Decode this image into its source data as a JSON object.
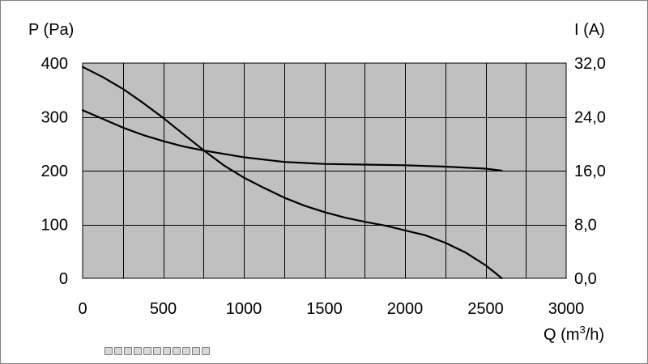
{
  "chart_data": {
    "type": "line",
    "title": "",
    "xlabel_prefix": "Q (m",
    "xlabel_sup": "3",
    "xlabel_suffix": "/h)",
    "ylabel": "P (Pa)",
    "y2label": "I (A)",
    "xlim": [
      0,
      3000
    ],
    "ylim": [
      0,
      400
    ],
    "y2lim": [
      0,
      32
    ],
    "x_ticks": [
      "0",
      "500",
      "1000",
      "1500",
      "2000",
      "2500",
      "3000"
    ],
    "y_ticks": [
      "0",
      "100",
      "200",
      "300",
      "400"
    ],
    "y2_ticks": [
      "0,0",
      "8,0",
      "16,0",
      "24,0",
      "32,0"
    ],
    "x_grid_step": 250,
    "y_grid_step": 100,
    "grid": true,
    "plot_background": "#c0c0c0",
    "line_color": "#000000",
    "series": [
      {
        "axis": "left",
        "x": [
          0,
          125,
          250,
          375,
          500,
          625,
          750,
          875,
          1000,
          1125,
          1250,
          1375,
          1500,
          1625,
          1750,
          1875,
          2000,
          2125,
          2250,
          2375,
          2500,
          2560,
          2600
        ],
        "y": [
          393,
          374,
          352,
          326,
          298,
          268,
          238,
          210,
          187,
          168,
          150,
          135,
          123,
          113,
          105,
          98,
          89,
          80,
          66,
          48,
          24,
          10,
          0
        ]
      },
      {
        "axis": "right",
        "x": [
          0,
          125,
          250,
          375,
          500,
          625,
          750,
          875,
          1000,
          1250,
          1500,
          1750,
          2000,
          2250,
          2500,
          2600
        ],
        "y": [
          25.0,
          23.7,
          22.4,
          21.3,
          20.4,
          19.6,
          19.0,
          18.5,
          18.0,
          17.3,
          17.0,
          16.9,
          16.8,
          16.6,
          16.3,
          16.0
        ]
      }
    ]
  },
  "toolbar": {
    "icons": [
      "figure-icon",
      "chart-icon",
      "globe-icon",
      "palette-icon",
      "map-icon",
      "grid-icon",
      "table-icon",
      "pie-icon",
      "pencil-icon",
      "image-icon",
      "copy-icon"
    ]
  }
}
